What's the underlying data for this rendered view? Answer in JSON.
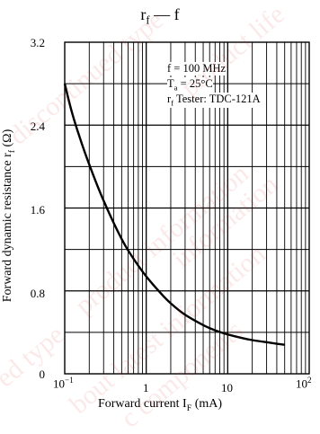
{
  "title": {
    "main": "r",
    "sub": "f",
    "suffix": " — f"
  },
  "ylabel": {
    "main": "Forward dynamic resistance  r",
    "sub": "f",
    "unit": "  (Ω)"
  },
  "xlabel": {
    "main": "Forward current  I",
    "sub": "F",
    "unit": "  (mA)"
  },
  "notes": [
    {
      "text": "f = 100 MHz"
    },
    {
      "pre": "T",
      "sub": "a",
      "post": " = 25°C"
    },
    {
      "pre": "r",
      "sub": "f",
      "post": " Tester: TDC-121A"
    }
  ],
  "x_ticks": [
    {
      "base": "10",
      "exp": "−1"
    },
    {
      "base": "1",
      "exp": ""
    },
    {
      "base": "10",
      "exp": ""
    },
    {
      "base": "10",
      "exp": "2"
    }
  ],
  "y_ticks": [
    "0",
    "0.8",
    "1.6",
    "2.4",
    "3.2"
  ],
  "watermark": [
    "product life",
    "information",
    "discontinued type",
    "product information",
    "bout latest information",
    "c components",
    "ed type"
  ],
  "chart_data": {
    "type": "line",
    "xscale": "log",
    "xlim": [
      0.1,
      100
    ],
    "ylim": [
      0,
      3.2
    ],
    "grid": true,
    "x": [
      0.1,
      0.12,
      0.15,
      0.2,
      0.3,
      0.5,
      0.7,
      1,
      1.5,
      2,
      3,
      5,
      7,
      10,
      15,
      20,
      30,
      40,
      50
    ],
    "y": [
      2.8,
      2.55,
      2.3,
      2.02,
      1.67,
      1.3,
      1.11,
      0.94,
      0.78,
      0.68,
      0.57,
      0.47,
      0.42,
      0.38,
      0.345,
      0.325,
      0.305,
      0.29,
      0.28
    ]
  }
}
